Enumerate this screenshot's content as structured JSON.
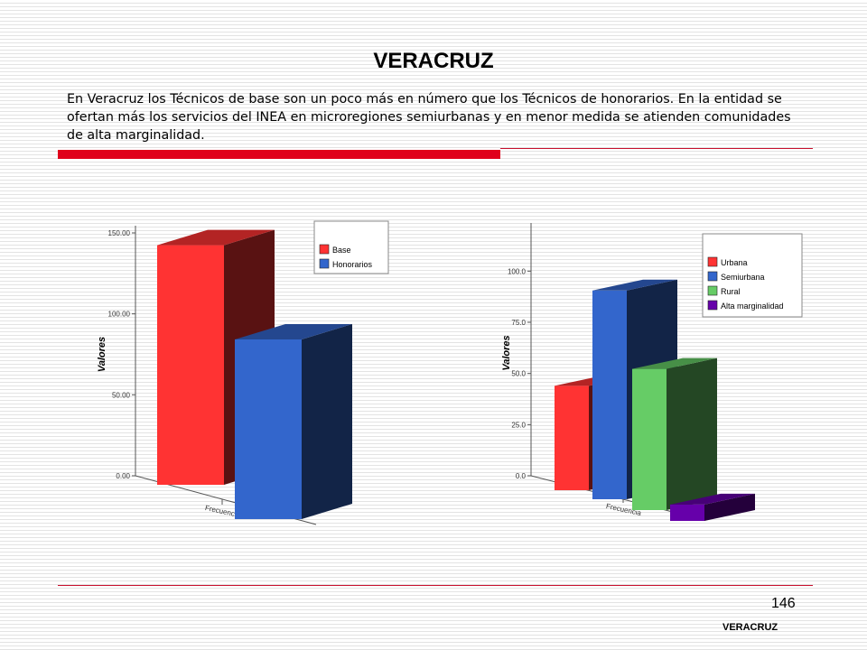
{
  "slide": {
    "title": "VERACRUZ",
    "paragraph": "En Veracruz los Técnicos de base son un poco más en número que los Técnicos de honorarios. En la entidad se  ofertan más los servicios del INEA en microregiones semiurbanas y en menor medida se atienden comunidades de alta marginalidad.",
    "page_number": "146",
    "footer_label": "VERACRUZ",
    "accent_color": "#e0001b"
  },
  "chart_data": [
    {
      "type": "bar",
      "categories": [
        "Frecuencia"
      ],
      "series": [
        {
          "name": "Base",
          "values": [
            148
          ],
          "color": "#ff3333"
        },
        {
          "name": "Honorarios",
          "values": [
            111
          ],
          "color": "#3366cc"
        }
      ],
      "ylabel": "Valores",
      "ylim": [
        0,
        150
      ],
      "yticks": [
        "0.00",
        "50.00",
        "100.00",
        "150.00"
      ],
      "legend": "top-right",
      "grid": false
    },
    {
      "type": "bar",
      "categories": [
        "Frecuencia"
      ],
      "series": [
        {
          "name": "Urbana",
          "values": [
            51
          ],
          "color": "#ff3333"
        },
        {
          "name": "Semiurbana",
          "values": [
            102
          ],
          "color": "#3366cc"
        },
        {
          "name": "Rural",
          "values": [
            69
          ],
          "color": "#66cc66"
        },
        {
          "name": "Alta marginalidad",
          "values": [
            8
          ],
          "color": "#6600aa"
        }
      ],
      "ylabel": "Valores",
      "ylim": [
        0,
        120
      ],
      "yticks": [
        "0.0",
        "25.0",
        "50.0",
        "75.0",
        "100.0"
      ],
      "legend": "top-right",
      "grid": false
    }
  ]
}
